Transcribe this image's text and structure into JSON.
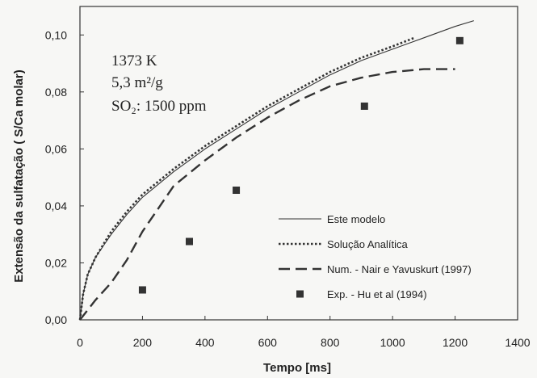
{
  "chart_data": {
    "type": "line",
    "xlabel": "Tempo [ms]",
    "ylabel": "Extensão da sulfatação ( S/Ca molar)",
    "xlim": [
      0,
      1400
    ],
    "ylim": [
      0,
      0.11
    ],
    "x_ticks": [
      "0",
      "200",
      "400",
      "600",
      "800",
      "1000",
      "1200",
      "1400"
    ],
    "y_ticks": [
      "0,00",
      "0,02",
      "0,04",
      "0,06",
      "0,08",
      "0,10"
    ],
    "grid": false,
    "legend_position": "bottom-right",
    "annotations": [
      "1373 K",
      "5,3 m²/g",
      "SO₂: 1500 ppm"
    ],
    "series": [
      {
        "name": "Este modelo",
        "style": "solid",
        "x": [
          0,
          10,
          25,
          50,
          100,
          150,
          200,
          300,
          400,
          500,
          600,
          700,
          800,
          900,
          1000,
          1100,
          1200,
          1260
        ],
        "y": [
          0,
          0.009,
          0.016,
          0.022,
          0.03,
          0.037,
          0.043,
          0.052,
          0.06,
          0.067,
          0.074,
          0.08,
          0.086,
          0.091,
          0.095,
          0.099,
          0.103,
          0.105
        ]
      },
      {
        "name": "Solução Analítica",
        "style": "dotted",
        "x": [
          0,
          10,
          25,
          50,
          100,
          150,
          200,
          300,
          400,
          500,
          600,
          700,
          800,
          900,
          1000,
          1070
        ],
        "y": [
          0,
          0.009,
          0.016,
          0.022,
          0.031,
          0.038,
          0.044,
          0.053,
          0.061,
          0.068,
          0.075,
          0.081,
          0.087,
          0.092,
          0.096,
          0.099
        ]
      },
      {
        "name": "Num. - Nair e Yavuskurt (1997)",
        "style": "dashed",
        "x": [
          0,
          50,
          100,
          150,
          200,
          250,
          300,
          400,
          500,
          600,
          700,
          800,
          900,
          1000,
          1100,
          1200
        ],
        "y": [
          0,
          0.007,
          0.013,
          0.021,
          0.031,
          0.039,
          0.047,
          0.056,
          0.064,
          0.071,
          0.077,
          0.082,
          0.085,
          0.087,
          0.088,
          0.088
        ]
      },
      {
        "name": "Exp. - Hu et al (1994)",
        "style": "markers",
        "x": [
          200,
          350,
          500,
          910,
          1215
        ],
        "y": [
          0.0105,
          0.0275,
          0.0455,
          0.075,
          0.098
        ]
      }
    ]
  },
  "colors": {
    "line": "#333333",
    "marker": "#333333",
    "background": "#f7f7f5"
  }
}
